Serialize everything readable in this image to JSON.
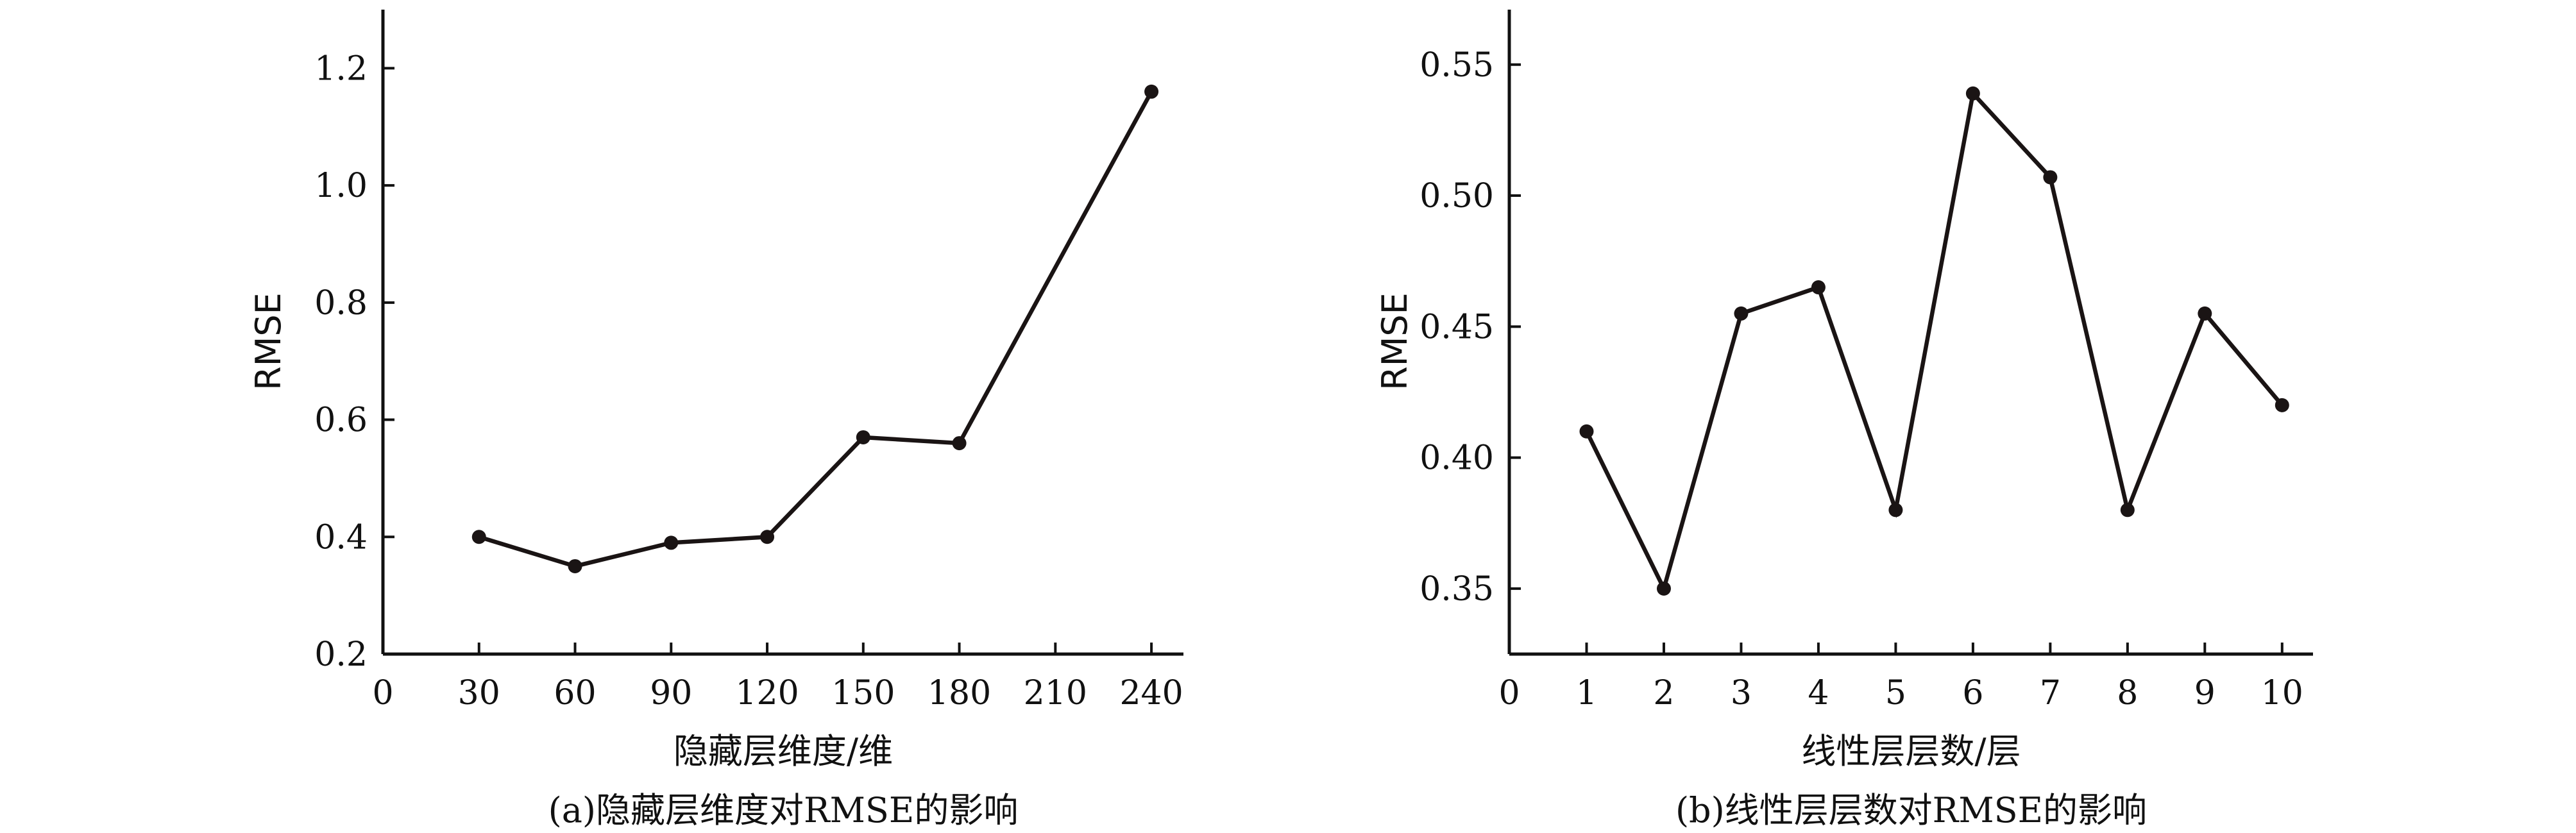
{
  "chart_data": [
    {
      "type": "line",
      "caption": "(a)隐藏层维度对RMSE的影响",
      "xlabel": "隐藏层维度/维",
      "ylabel": "RMSE",
      "x": [
        30,
        60,
        90,
        120,
        150,
        180,
        240
      ],
      "y": [
        0.4,
        0.35,
        0.39,
        0.4,
        0.57,
        0.56,
        1.16
      ],
      "xlim": [
        0,
        250
      ],
      "ylim": [
        0.2,
        1.3
      ],
      "xticks": [
        0,
        30,
        60,
        90,
        120,
        150,
        180,
        210,
        240
      ],
      "yticks": [
        0.2,
        0.4,
        0.6,
        0.8,
        1.0,
        1.2
      ],
      "xtick_labels": [
        "0",
        "30",
        "60",
        "90",
        "120",
        "150",
        "180",
        "210",
        "240"
      ],
      "ytick_labels": [
        "0.2",
        "0.4",
        "0.6",
        "0.8",
        "1.0",
        "1.2"
      ],
      "grid": false,
      "color": "#1a1414"
    },
    {
      "type": "line",
      "caption": "(b)线性层层数对RMSE的影响",
      "xlabel": "线性层层数/层",
      "ylabel": "RMSE",
      "x": [
        1,
        2,
        3,
        4,
        5,
        6,
        7,
        8,
        9,
        10
      ],
      "y": [
        0.41,
        0.35,
        0.455,
        0.465,
        0.38,
        0.539,
        0.507,
        0.38,
        0.455,
        0.42
      ],
      "xlim": [
        0,
        10.4
      ],
      "ylim": [
        0.325,
        0.571
      ],
      "xticks": [
        0,
        1,
        2,
        3,
        4,
        5,
        6,
        7,
        8,
        9,
        10
      ],
      "yticks": [
        0.35,
        0.4,
        0.45,
        0.5,
        0.55
      ],
      "xtick_labels": [
        "0",
        "1",
        "2",
        "3",
        "4",
        "5",
        "6",
        "7",
        "8",
        "9",
        "10"
      ],
      "ytick_labels": [
        "0.35",
        "0.40",
        "0.45",
        "0.50",
        "0.55"
      ],
      "grid": false,
      "color": "#1a1414"
    }
  ]
}
